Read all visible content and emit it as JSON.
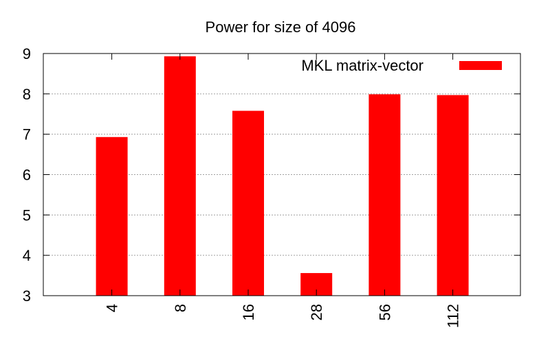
{
  "chart_data": {
    "type": "bar",
    "title": "Power for size of 4096",
    "xlabel": "",
    "ylabel": "",
    "categories": [
      "4",
      "8",
      "16",
      "28",
      "56",
      "112"
    ],
    "series": [
      {
        "name": "MKL matrix-vector",
        "values": [
          6.93,
          8.93,
          7.58,
          3.56,
          7.99,
          7.97
        ],
        "color": "#ff0000"
      }
    ],
    "ylim": [
      3,
      9
    ],
    "yticks": [
      "3",
      "4",
      "5",
      "6",
      "7",
      "8",
      "9"
    ],
    "grid": true,
    "legend_position": "top-right"
  }
}
